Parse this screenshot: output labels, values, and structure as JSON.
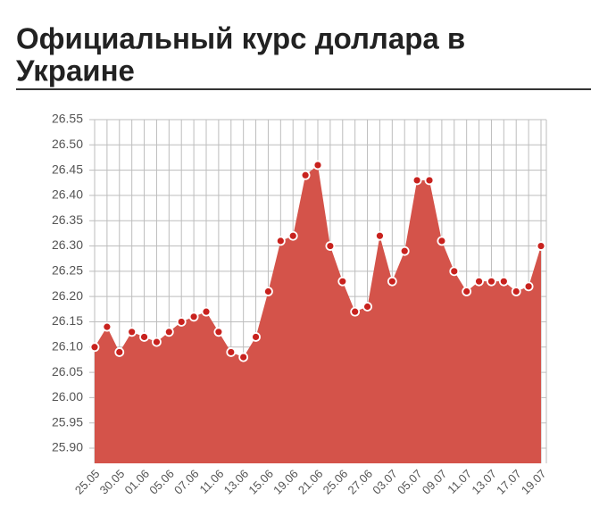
{
  "chart_data": {
    "type": "area",
    "title_lines": [
      "Официальный курс доллара в",
      "Украине"
    ],
    "categories": [
      "25.05",
      null,
      "30.05",
      null,
      "01.06",
      null,
      "05.06",
      null,
      "07.06",
      null,
      "11.06",
      null,
      "13.06",
      null,
      "15.06",
      null,
      "19.06",
      null,
      "21.06",
      null,
      "25.06",
      null,
      "27.06",
      null,
      "03.07",
      null,
      "05.07",
      null,
      "09.07",
      null,
      "11.07",
      null,
      "13.07",
      null,
      "17.07",
      null,
      "19.07"
    ],
    "values": [
      26.1,
      26.14,
      26.09,
      26.13,
      26.12,
      26.11,
      26.13,
      26.15,
      26.16,
      26.17,
      26.13,
      26.09,
      26.08,
      26.12,
      26.21,
      26.31,
      26.32,
      26.44,
      26.46,
      26.3,
      26.23,
      26.17,
      26.18,
      26.32,
      26.23,
      26.29,
      26.43,
      26.43,
      26.31,
      26.25,
      26.21,
      26.23,
      26.23,
      26.23,
      26.21,
      26.22,
      26.3
    ],
    "color": "#d4534a",
    "marker_color": "#c8221e",
    "ylim": [
      25.87,
      26.55
    ],
    "yticks": [
      {
        "value": 25.9,
        "label": "25.90"
      },
      25.95,
      {
        "value": 26.0,
        "label": "26.00"
      },
      26.05,
      {
        "value": 26.1,
        "label": "26.10"
      },
      26.15,
      {
        "value": 26.2,
        "label": "26.20"
      },
      26.25,
      {
        "value": 26.3,
        "label": "26.30"
      },
      26.35,
      {
        "value": 26.4,
        "label": "26.40"
      },
      26.45,
      {
        "value": 26.5,
        "label": "26.50"
      },
      26.55
    ],
    "grid": true
  }
}
